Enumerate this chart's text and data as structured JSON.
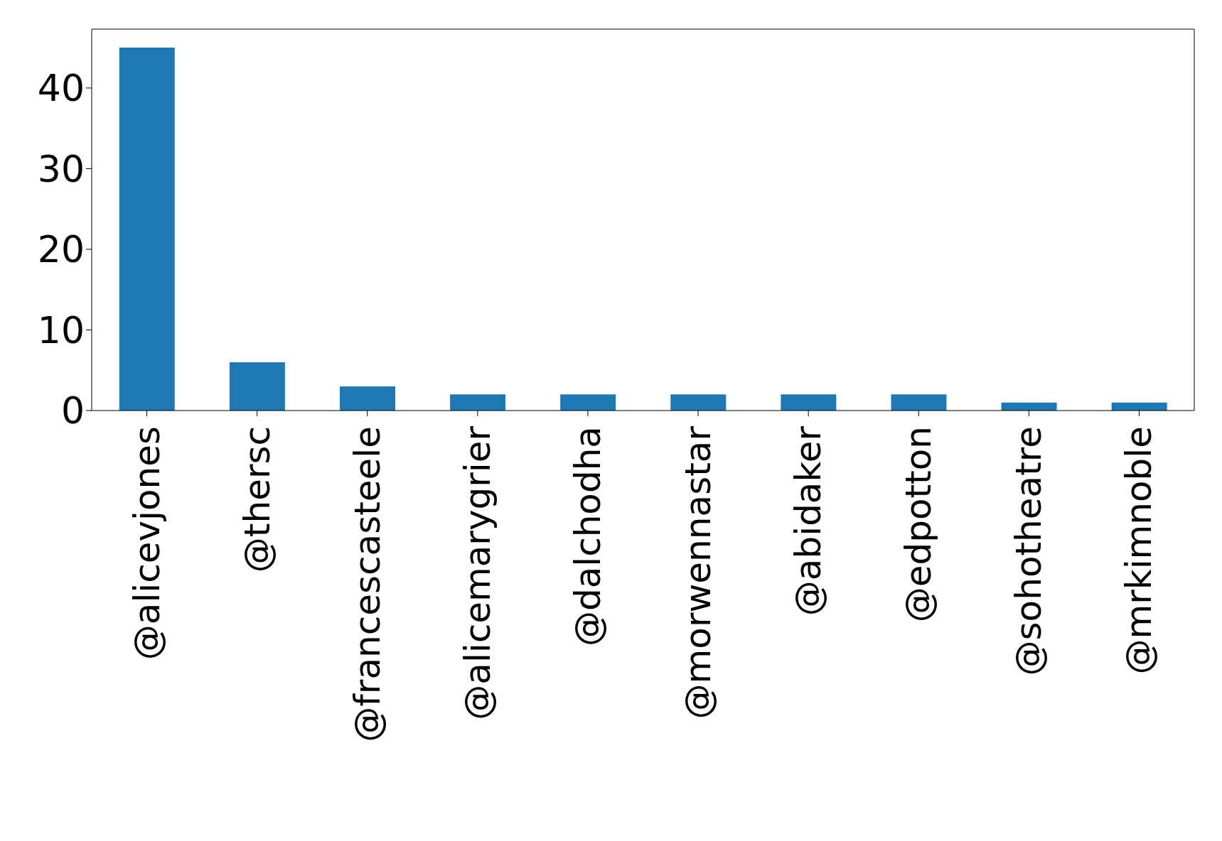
{
  "chart_data": {
    "type": "bar",
    "categories": [
      "@alicevjones",
      "@thersc",
      "@francescasteele",
      "@alicemarygrier",
      "@dalchodha",
      "@morwennastar",
      "@abidaker",
      "@edpotton",
      "@sohotheatre",
      "@mrkimnoble"
    ],
    "values": [
      45,
      6,
      3,
      2,
      2,
      2,
      2,
      2,
      1,
      1
    ],
    "color": "#1f77b4",
    "ylim": [
      0,
      47.3
    ],
    "yticks": [
      0,
      10,
      20,
      30,
      40
    ],
    "grid": false,
    "legend": false
  }
}
